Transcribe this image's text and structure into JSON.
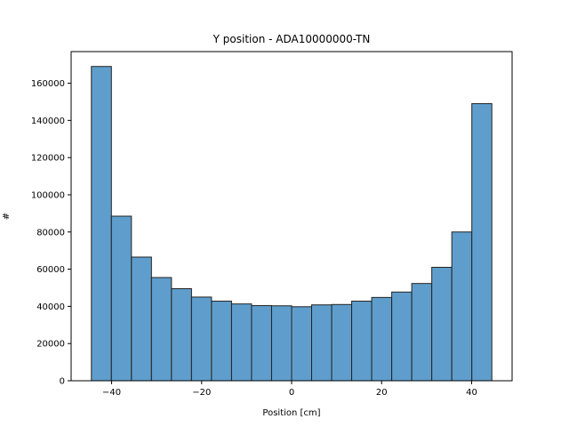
{
  "chart_data": {
    "type": "bar",
    "title": "Y position - ADA10000000-TN",
    "xlabel": "Position [cm]",
    "ylabel": "#",
    "xlim": [
      -49,
      49
    ],
    "ylim": [
      0,
      177000
    ],
    "x_ticks": [
      -40,
      -20,
      0,
      20,
      40
    ],
    "y_ticks": [
      0,
      20000,
      40000,
      60000,
      80000,
      100000,
      120000,
      140000,
      160000
    ],
    "grid": false,
    "bar_color": "#5f9ecc",
    "edge_color": "#222222",
    "bins": [
      {
        "x0": -44.5,
        "x1": -40.05,
        "value": 169000
      },
      {
        "x0": -40.05,
        "x1": -35.6,
        "value": 88500
      },
      {
        "x0": -35.6,
        "x1": -31.15,
        "value": 66500
      },
      {
        "x0": -31.15,
        "x1": -26.7,
        "value": 55500
      },
      {
        "x0": -26.7,
        "x1": -22.25,
        "value": 49500
      },
      {
        "x0": -22.25,
        "x1": -17.8,
        "value": 45000
      },
      {
        "x0": -17.8,
        "x1": -13.35,
        "value": 42800
      },
      {
        "x0": -13.35,
        "x1": -8.9,
        "value": 41300
      },
      {
        "x0": -8.9,
        "x1": -4.45,
        "value": 40400
      },
      {
        "x0": -4.45,
        "x1": 0.0,
        "value": 40300
      },
      {
        "x0": 0.0,
        "x1": 4.45,
        "value": 39800
      },
      {
        "x0": 4.45,
        "x1": 8.9,
        "value": 40800
      },
      {
        "x0": 8.9,
        "x1": 13.35,
        "value": 41000
      },
      {
        "x0": 13.35,
        "x1": 17.8,
        "value": 42800
      },
      {
        "x0": 17.8,
        "x1": 22.25,
        "value": 44800
      },
      {
        "x0": 22.25,
        "x1": 26.7,
        "value": 47700
      },
      {
        "x0": 26.7,
        "x1": 31.15,
        "value": 52300
      },
      {
        "x0": 31.15,
        "x1": 35.6,
        "value": 61000
      },
      {
        "x0": 35.6,
        "x1": 40.05,
        "value": 80000
      },
      {
        "x0": 40.05,
        "x1": 44.5,
        "value": 149000
      }
    ]
  }
}
